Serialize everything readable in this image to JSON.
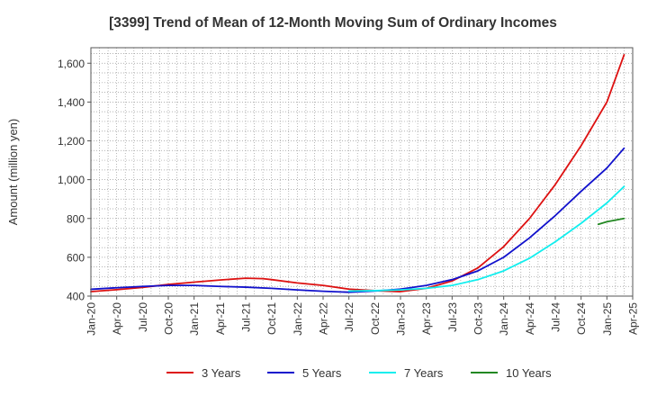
{
  "chart_data": {
    "type": "line",
    "title": "[3399]  Trend of Mean of 12-Month Moving Sum of Ordinary Incomes",
    "xlabel": "",
    "ylabel": "Amount (million yen)",
    "ylim": [
      400,
      1680
    ],
    "yticks": [
      400,
      600,
      800,
      1000,
      1200,
      1400,
      1600
    ],
    "ytick_labels": [
      "400",
      "600",
      "800",
      "1,000",
      "1,200",
      "1,400",
      "1,600"
    ],
    "xlim": [
      "2020-01",
      "2025-04"
    ],
    "xtick_labels": [
      "Jan-20",
      "Apr-20",
      "Jul-20",
      "Oct-20",
      "Jan-21",
      "Apr-21",
      "Jul-21",
      "Oct-21",
      "Jan-22",
      "Apr-22",
      "Jul-22",
      "Oct-22",
      "Jan-23",
      "Apr-23",
      "Jul-23",
      "Oct-23",
      "Jan-24",
      "Apr-24",
      "Jul-24",
      "Oct-24",
      "Jan-25",
      "Apr-25"
    ],
    "grid": true,
    "legend_position": "bottom",
    "series": [
      {
        "name": "3 Years",
        "color": "#dd1111",
        "points": [
          [
            "2020-01",
            423
          ],
          [
            "2020-04",
            433
          ],
          [
            "2020-07",
            445
          ],
          [
            "2020-10",
            460
          ],
          [
            "2021-01",
            472
          ],
          [
            "2021-04",
            483
          ],
          [
            "2021-07",
            492
          ],
          [
            "2021-09",
            490
          ],
          [
            "2021-10",
            485
          ],
          [
            "2022-01",
            468
          ],
          [
            "2022-04",
            455
          ],
          [
            "2022-07",
            436
          ],
          [
            "2022-10",
            428
          ],
          [
            "2023-01",
            423
          ],
          [
            "2023-04",
            440
          ],
          [
            "2023-07",
            478
          ],
          [
            "2023-10",
            545
          ],
          [
            "2024-01",
            655
          ],
          [
            "2024-04",
            800
          ],
          [
            "2024-07",
            975
          ],
          [
            "2024-10",
            1175
          ],
          [
            "2025-01",
            1400
          ],
          [
            "2025-03",
            1643
          ]
        ]
      },
      {
        "name": "5 Years",
        "color": "#1111cc",
        "points": [
          [
            "2020-01",
            435
          ],
          [
            "2020-04",
            443
          ],
          [
            "2020-07",
            450
          ],
          [
            "2020-10",
            455
          ],
          [
            "2021-01",
            455
          ],
          [
            "2021-04",
            450
          ],
          [
            "2021-07",
            446
          ],
          [
            "2021-10",
            440
          ],
          [
            "2022-01",
            432
          ],
          [
            "2022-04",
            425
          ],
          [
            "2022-07",
            420
          ],
          [
            "2022-10",
            426
          ],
          [
            "2023-01",
            436
          ],
          [
            "2023-04",
            455
          ],
          [
            "2023-07",
            485
          ],
          [
            "2023-10",
            530
          ],
          [
            "2024-01",
            600
          ],
          [
            "2024-04",
            700
          ],
          [
            "2024-07",
            815
          ],
          [
            "2024-10",
            940
          ],
          [
            "2025-01",
            1060
          ],
          [
            "2025-03",
            1162
          ]
        ]
      },
      {
        "name": "7 Years",
        "color": "#11eeee",
        "points": [
          [
            "2022-07",
            426
          ],
          [
            "2022-10",
            428
          ],
          [
            "2023-01",
            432
          ],
          [
            "2023-04",
            440
          ],
          [
            "2023-07",
            455
          ],
          [
            "2023-10",
            485
          ],
          [
            "2024-01",
            530
          ],
          [
            "2024-04",
            595
          ],
          [
            "2024-07",
            680
          ],
          [
            "2024-10",
            775
          ],
          [
            "2025-01",
            880
          ],
          [
            "2025-03",
            965
          ]
        ]
      },
      {
        "name": "10 Years",
        "color": "#228822",
        "points": [
          [
            "2024-12",
            770
          ],
          [
            "2025-01",
            783
          ],
          [
            "2025-03",
            800
          ]
        ]
      }
    ]
  }
}
